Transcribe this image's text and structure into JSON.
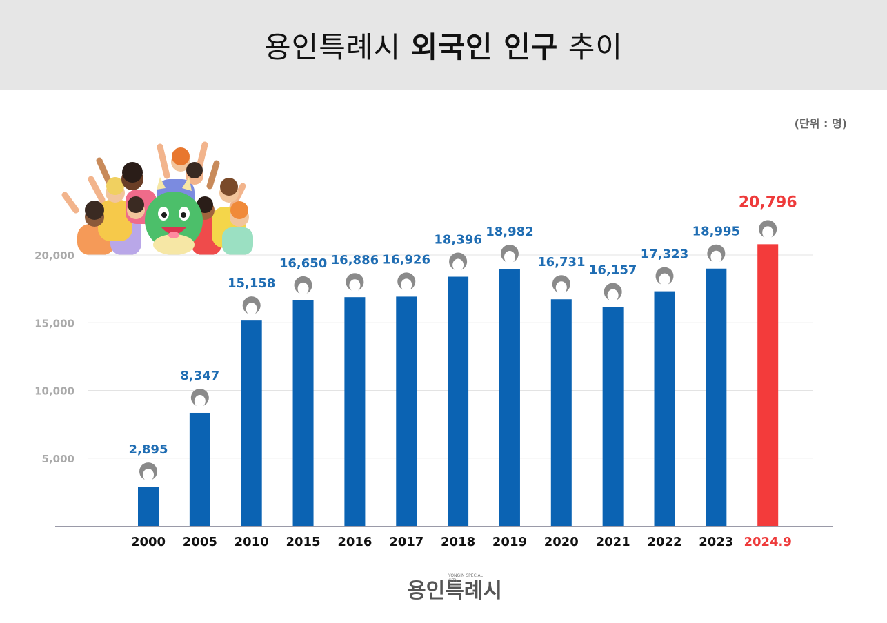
{
  "header": {
    "title_regular_1": "용인특례시",
    "title_bold": "외국인 인구",
    "title_regular_2": "추이"
  },
  "unit_label": "(단위 : 명)",
  "footer": {
    "logo_text": "용인특례시",
    "logo_subtext": "YONGIN SPECIAL CITY"
  },
  "colors": {
    "bar": "#0b63b3",
    "highlight_bar": "#f33b3b",
    "label_blue": "#1f6db3",
    "label_red": "#ee3b3b",
    "axis_tick": "#aaaaaa",
    "person_icon": "#8a8a8a"
  },
  "illustration": "crowd-with-dragon-mascot",
  "chart_data": {
    "type": "bar",
    "categories": [
      "2000",
      "2005",
      "2010",
      "2015",
      "2016",
      "2017",
      "2018",
      "2019",
      "2020",
      "2021",
      "2022",
      "2023",
      "2024.9"
    ],
    "values": [
      2895,
      8347,
      15158,
      16650,
      16886,
      16926,
      18396,
      18982,
      16731,
      16157,
      17323,
      18995,
      20796
    ],
    "value_labels": [
      "2,895",
      "8,347",
      "15,158",
      "16,650",
      "16,886",
      "16,926",
      "18,396",
      "18,982",
      "16,731",
      "16,157",
      "17,323",
      "18,995",
      "20,796"
    ],
    "highlight_index": 12,
    "y_ticks": [
      5000,
      10000,
      15000,
      20000
    ],
    "y_tick_labels": [
      "5,000",
      "10,000",
      "15,000",
      "20,000"
    ],
    "ylim": [
      0,
      20000
    ],
    "grid": true,
    "title": "",
    "xlabel": "",
    "ylabel": ""
  }
}
